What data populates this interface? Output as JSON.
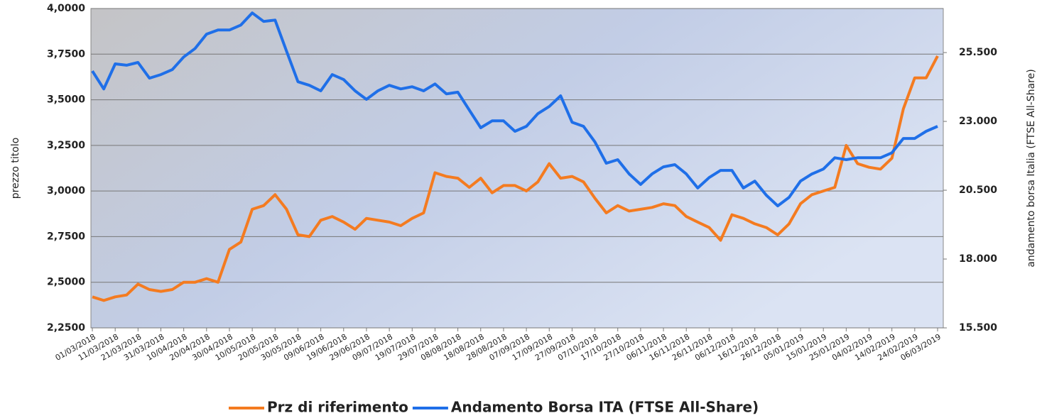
{
  "chart_data": {
    "type": "line",
    "y_label": "prezzo titolo",
    "y2_label": "andamento borsa Italia (FTSE All-Share)",
    "categories": [
      "01/03/2018",
      null,
      "11/03/2018",
      null,
      "21/03/2018",
      null,
      "31/03/2018",
      null,
      "10/04/2018",
      null,
      "20/04/2018",
      null,
      "30/04/2018",
      null,
      "10/05/2018",
      null,
      "20/05/2018",
      null,
      "30/05/2018",
      null,
      "09/06/2018",
      null,
      "19/06/2018",
      null,
      "29/06/2018",
      null,
      "09/07/2018",
      null,
      "19/07/2018",
      null,
      "29/07/2018",
      null,
      "08/08/2018",
      null,
      "18/08/2018",
      null,
      "28/08/2018",
      null,
      "07/09/2018",
      null,
      "17/09/2018",
      null,
      "27/09/2018",
      null,
      "07/10/2018",
      null,
      "17/10/2018",
      null,
      "27/10/2018",
      null,
      "06/11/2018",
      null,
      "16/11/2018",
      null,
      "26/11/2018",
      null,
      "06/12/2018",
      null,
      "16/12/2018",
      null,
      "26/12/2018",
      null,
      "05/01/2019",
      null,
      "15/01/2019",
      null,
      "25/01/2019",
      null,
      "04/02/2019",
      null,
      "14/02/2019",
      null,
      "24/02/2019",
      null,
      "06/03/2019"
    ],
    "series": [
      {
        "name": "Prz di riferimento",
        "color": "#f47b20",
        "axis": "y",
        "values": [
          2.42,
          2.4,
          2.42,
          2.43,
          2.49,
          2.46,
          2.45,
          2.46,
          2.5,
          2.5,
          2.52,
          2.5,
          2.68,
          2.72,
          2.9,
          2.92,
          2.98,
          2.9,
          2.76,
          2.75,
          2.84,
          2.86,
          2.83,
          2.79,
          2.85,
          2.84,
          2.83,
          2.81,
          2.85,
          2.88,
          3.1,
          3.08,
          3.07,
          3.02,
          3.07,
          2.99,
          3.03,
          3.03,
          3.0,
          3.05,
          3.15,
          3.07,
          3.08,
          3.05,
          2.96,
          2.88,
          2.92,
          2.89,
          2.9,
          2.91,
          2.93,
          2.92,
          2.86,
          2.83,
          2.8,
          2.73,
          2.87,
          2.85,
          2.82,
          2.8,
          2.76,
          2.82,
          2.93,
          2.98,
          3.0,
          3.02,
          3.25,
          3.15,
          3.13,
          3.12,
          3.18,
          3.45,
          3.62,
          3.62,
          3.74
        ]
      },
      {
        "name": "Andamento Borsa ITA (FTSE All-Share)",
        "color": "#1f6fe8",
        "axis": "y2",
        "values": [
          24830,
          24180,
          25090,
          25040,
          25140,
          24570,
          24700,
          24880,
          25340,
          25650,
          26170,
          26320,
          26320,
          26500,
          26940,
          26630,
          26680,
          25550,
          24440,
          24310,
          24110,
          24700,
          24520,
          24110,
          23800,
          24110,
          24310,
          24180,
          24260,
          24110,
          24360,
          24000,
          24060,
          23410,
          22770,
          23020,
          23020,
          22640,
          22820,
          23280,
          23540,
          23930,
          22970,
          22820,
          22250,
          21480,
          21610,
          21090,
          20710,
          21090,
          21350,
          21430,
          21090,
          20580,
          20960,
          21220,
          21220,
          20580,
          20830,
          20320,
          19930,
          20240,
          20830,
          21090,
          21270,
          21680,
          21610,
          21680,
          21680,
          21680,
          21860,
          22380,
          22380,
          22640,
          22820
        ]
      }
    ],
    "ylim": [
      2.25,
      4.0
    ],
    "yticks": [
      {
        "value": 2.25,
        "label": "2,2500"
      },
      {
        "value": 2.5,
        "label": "2,5000"
      },
      {
        "value": 2.75,
        "label": "2,7500"
      },
      {
        "value": 3.0,
        "label": "3,0000"
      },
      {
        "value": 3.25,
        "label": "3,2500"
      },
      {
        "value": 3.5,
        "label": "3,5000"
      },
      {
        "value": 3.75,
        "label": "3,7500"
      },
      {
        "value": 4.0,
        "label": "4,0000"
      }
    ],
    "y2lim": [
      15500,
      27100
    ],
    "y2ticks": [
      {
        "value": 15500,
        "label": "15.500"
      },
      {
        "value": 18000,
        "label": "18.000"
      },
      {
        "value": 20500,
        "label": "20.500"
      },
      {
        "value": 23000,
        "label": "23.000"
      },
      {
        "value": 25500,
        "label": "25.500"
      }
    ],
    "grid": true
  }
}
